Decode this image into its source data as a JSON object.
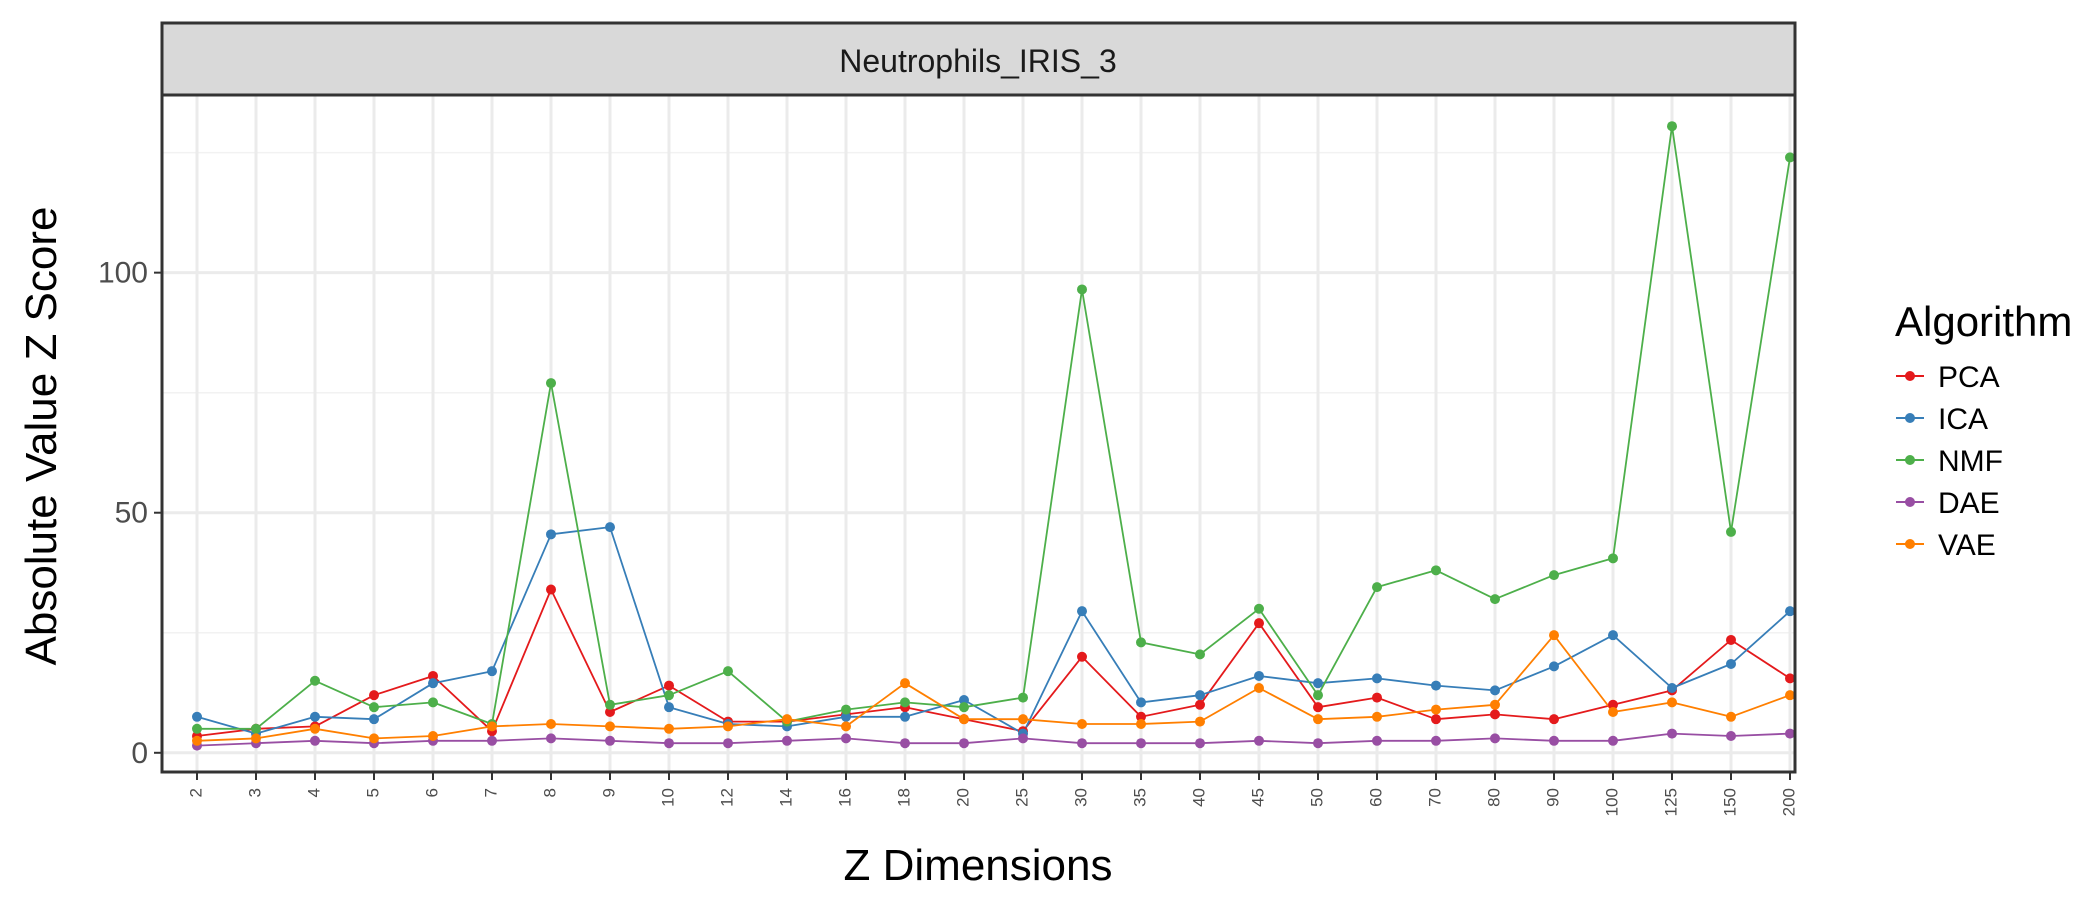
{
  "chart_data": {
    "type": "line",
    "facet_title": "Neutrophils_IRIS_3",
    "xlabel": "Z Dimensions",
    "ylabel": "Absolute Value Z Score",
    "ylim": [
      -4,
      137
    ],
    "yticks": [
      0,
      50,
      100
    ],
    "grid": true,
    "legend": {
      "title": "Algorithm",
      "position": "right"
    },
    "categories": [
      "2",
      "3",
      "4",
      "5",
      "6",
      "7",
      "8",
      "9",
      "10",
      "12",
      "14",
      "16",
      "18",
      "20",
      "25",
      "30",
      "35",
      "40",
      "45",
      "50",
      "60",
      "70",
      "80",
      "90",
      "100",
      "125",
      "150",
      "200"
    ],
    "series": [
      {
        "name": "PCA",
        "color": "#E41A1C",
        "values": [
          3.5,
          5,
          5.5,
          12,
          16,
          4.5,
          34,
          8.5,
          14,
          6.5,
          6.5,
          8,
          9.5,
          7,
          4.5,
          20,
          7.5,
          10,
          27,
          9.5,
          11.5,
          7,
          8,
          7,
          10,
          13,
          23.5,
          15.5
        ]
      },
      {
        "name": "ICA",
        "color": "#377EB8",
        "values": [
          7.5,
          4,
          7.5,
          7,
          14.5,
          17,
          45.5,
          47,
          9.5,
          6,
          5.5,
          7.5,
          7.5,
          11,
          4,
          29.5,
          10.5,
          12,
          16,
          14.5,
          15.5,
          14,
          13,
          18,
          24.5,
          13.5,
          18.5,
          29.5
        ]
      },
      {
        "name": "NMF",
        "color": "#4DAF4A",
        "values": [
          5,
          5,
          15,
          9.5,
          10.5,
          6,
          77,
          10,
          12,
          17,
          6.5,
          9,
          10.5,
          9.5,
          11.5,
          96.5,
          23,
          20.5,
          30,
          12,
          34.5,
          38,
          32,
          37,
          40.5,
          130.5,
          46,
          124
        ]
      },
      {
        "name": "DAE",
        "color": "#984EA3",
        "values": [
          1.5,
          2,
          2.5,
          2,
          2.5,
          2.5,
          3,
          2.5,
          2,
          2,
          2.5,
          3,
          2,
          2,
          3,
          2,
          2,
          2,
          2.5,
          2,
          2.5,
          2.5,
          3,
          2.5,
          2.5,
          4,
          3.5,
          4
        ]
      },
      {
        "name": "VAE",
        "color": "#FF7F00",
        "values": [
          2.5,
          3,
          5,
          3,
          3.5,
          5.5,
          6,
          5.5,
          5,
          5.5,
          7,
          5.5,
          14.5,
          7,
          7,
          6,
          6,
          6.5,
          13.5,
          7,
          7.5,
          9,
          10,
          24.5,
          8.5,
          10.5,
          7.5,
          12
        ]
      }
    ]
  }
}
